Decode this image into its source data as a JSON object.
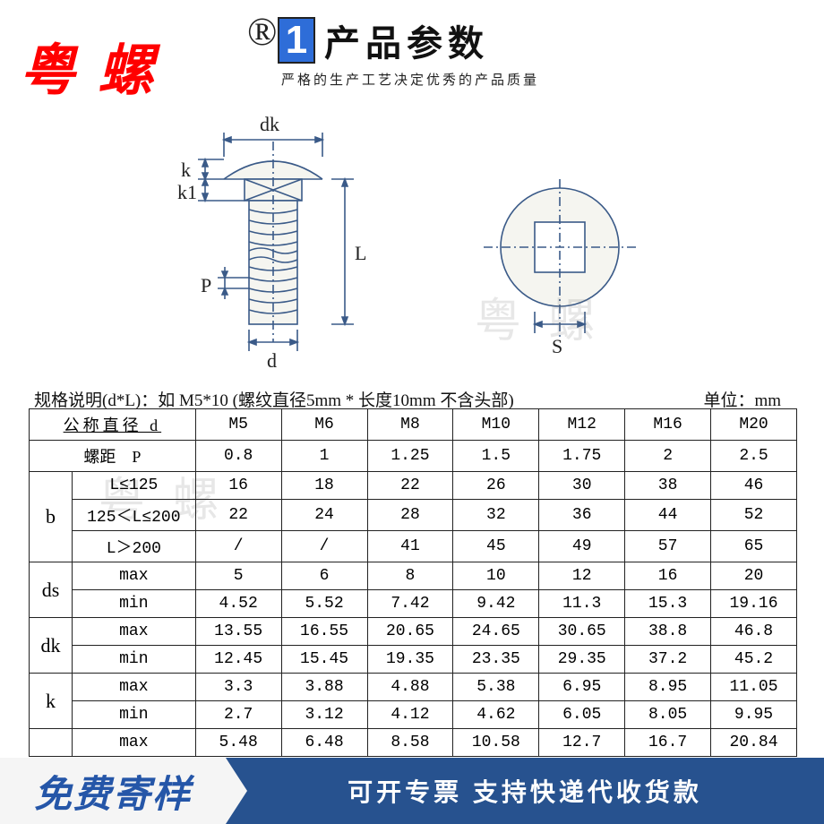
{
  "brand": "粤 螺",
  "registered": "®",
  "header": {
    "badge": "1",
    "title": "产品参数",
    "subtitle": "严格的生产工艺决定优秀的产品质量"
  },
  "diagram": {
    "labels": {
      "dk": "dk",
      "k": "k",
      "k1": "k1",
      "P": "P",
      "L": "L",
      "d": "d",
      "S": "S"
    },
    "stroke": "#3a5a88",
    "fill": "#f5f5f0"
  },
  "watermark": "粤 螺",
  "notes": {
    "spec": "规格说明(d*L)：如 M5*10  (螺纹直径5mm * 长度10mm 不含头部)",
    "unit": "单位：mm"
  },
  "table": {
    "headers": {
      "diameter_label": "公称直径   d",
      "pitch_label": "螺距　P",
      "sizes": [
        "M5",
        "M6",
        "M8",
        "M10",
        "M12",
        "M16",
        "M20"
      ]
    },
    "pitch": [
      "0.8",
      "1",
      "1.25",
      "1.5",
      "1.75",
      "2",
      "2.5"
    ],
    "groups": [
      {
        "name": "b",
        "rows": [
          {
            "label": "L≤125",
            "vals": [
              "16",
              "18",
              "22",
              "26",
              "30",
              "38",
              "46"
            ]
          },
          {
            "label": "125＜L≤200",
            "vals": [
              "22",
              "24",
              "28",
              "32",
              "36",
              "44",
              "52"
            ]
          },
          {
            "label": "L＞200",
            "vals": [
              "/",
              "/",
              "41",
              "45",
              "49",
              "57",
              "65"
            ]
          }
        ]
      },
      {
        "name": "ds",
        "rows": [
          {
            "label": "max",
            "vals": [
              "5",
              "6",
              "8",
              "10",
              "12",
              "16",
              "20"
            ]
          },
          {
            "label": "min",
            "vals": [
              "4.52",
              "5.52",
              "7.42",
              "9.42",
              "11.3",
              "15.3",
              "19.16"
            ]
          }
        ]
      },
      {
        "name": "dk",
        "rows": [
          {
            "label": "max",
            "vals": [
              "13.55",
              "16.55",
              "20.65",
              "24.65",
              "30.65",
              "38.8",
              "46.8"
            ]
          },
          {
            "label": "min",
            "vals": [
              "12.45",
              "15.45",
              "19.35",
              "23.35",
              "29.35",
              "37.2",
              "45.2"
            ]
          }
        ]
      },
      {
        "name": "k",
        "rows": [
          {
            "label": "max",
            "vals": [
              "3.3",
              "3.88",
              "4.88",
              "5.38",
              "6.95",
              "8.95",
              "11.05"
            ]
          },
          {
            "label": "min",
            "vals": [
              "2.7",
              "3.12",
              "4.12",
              "4.62",
              "6.05",
              "8.05",
              "9.95"
            ]
          }
        ]
      },
      {
        "name": "",
        "rows": [
          {
            "label": "max",
            "vals": [
              "5.48",
              "6.48",
              "8.58",
              "10.58",
              "12.7",
              "16.7",
              "20.84"
            ]
          }
        ]
      }
    ]
  },
  "footer": {
    "left": "免费寄样",
    "right": "可开专票 支持快递代收货款"
  }
}
